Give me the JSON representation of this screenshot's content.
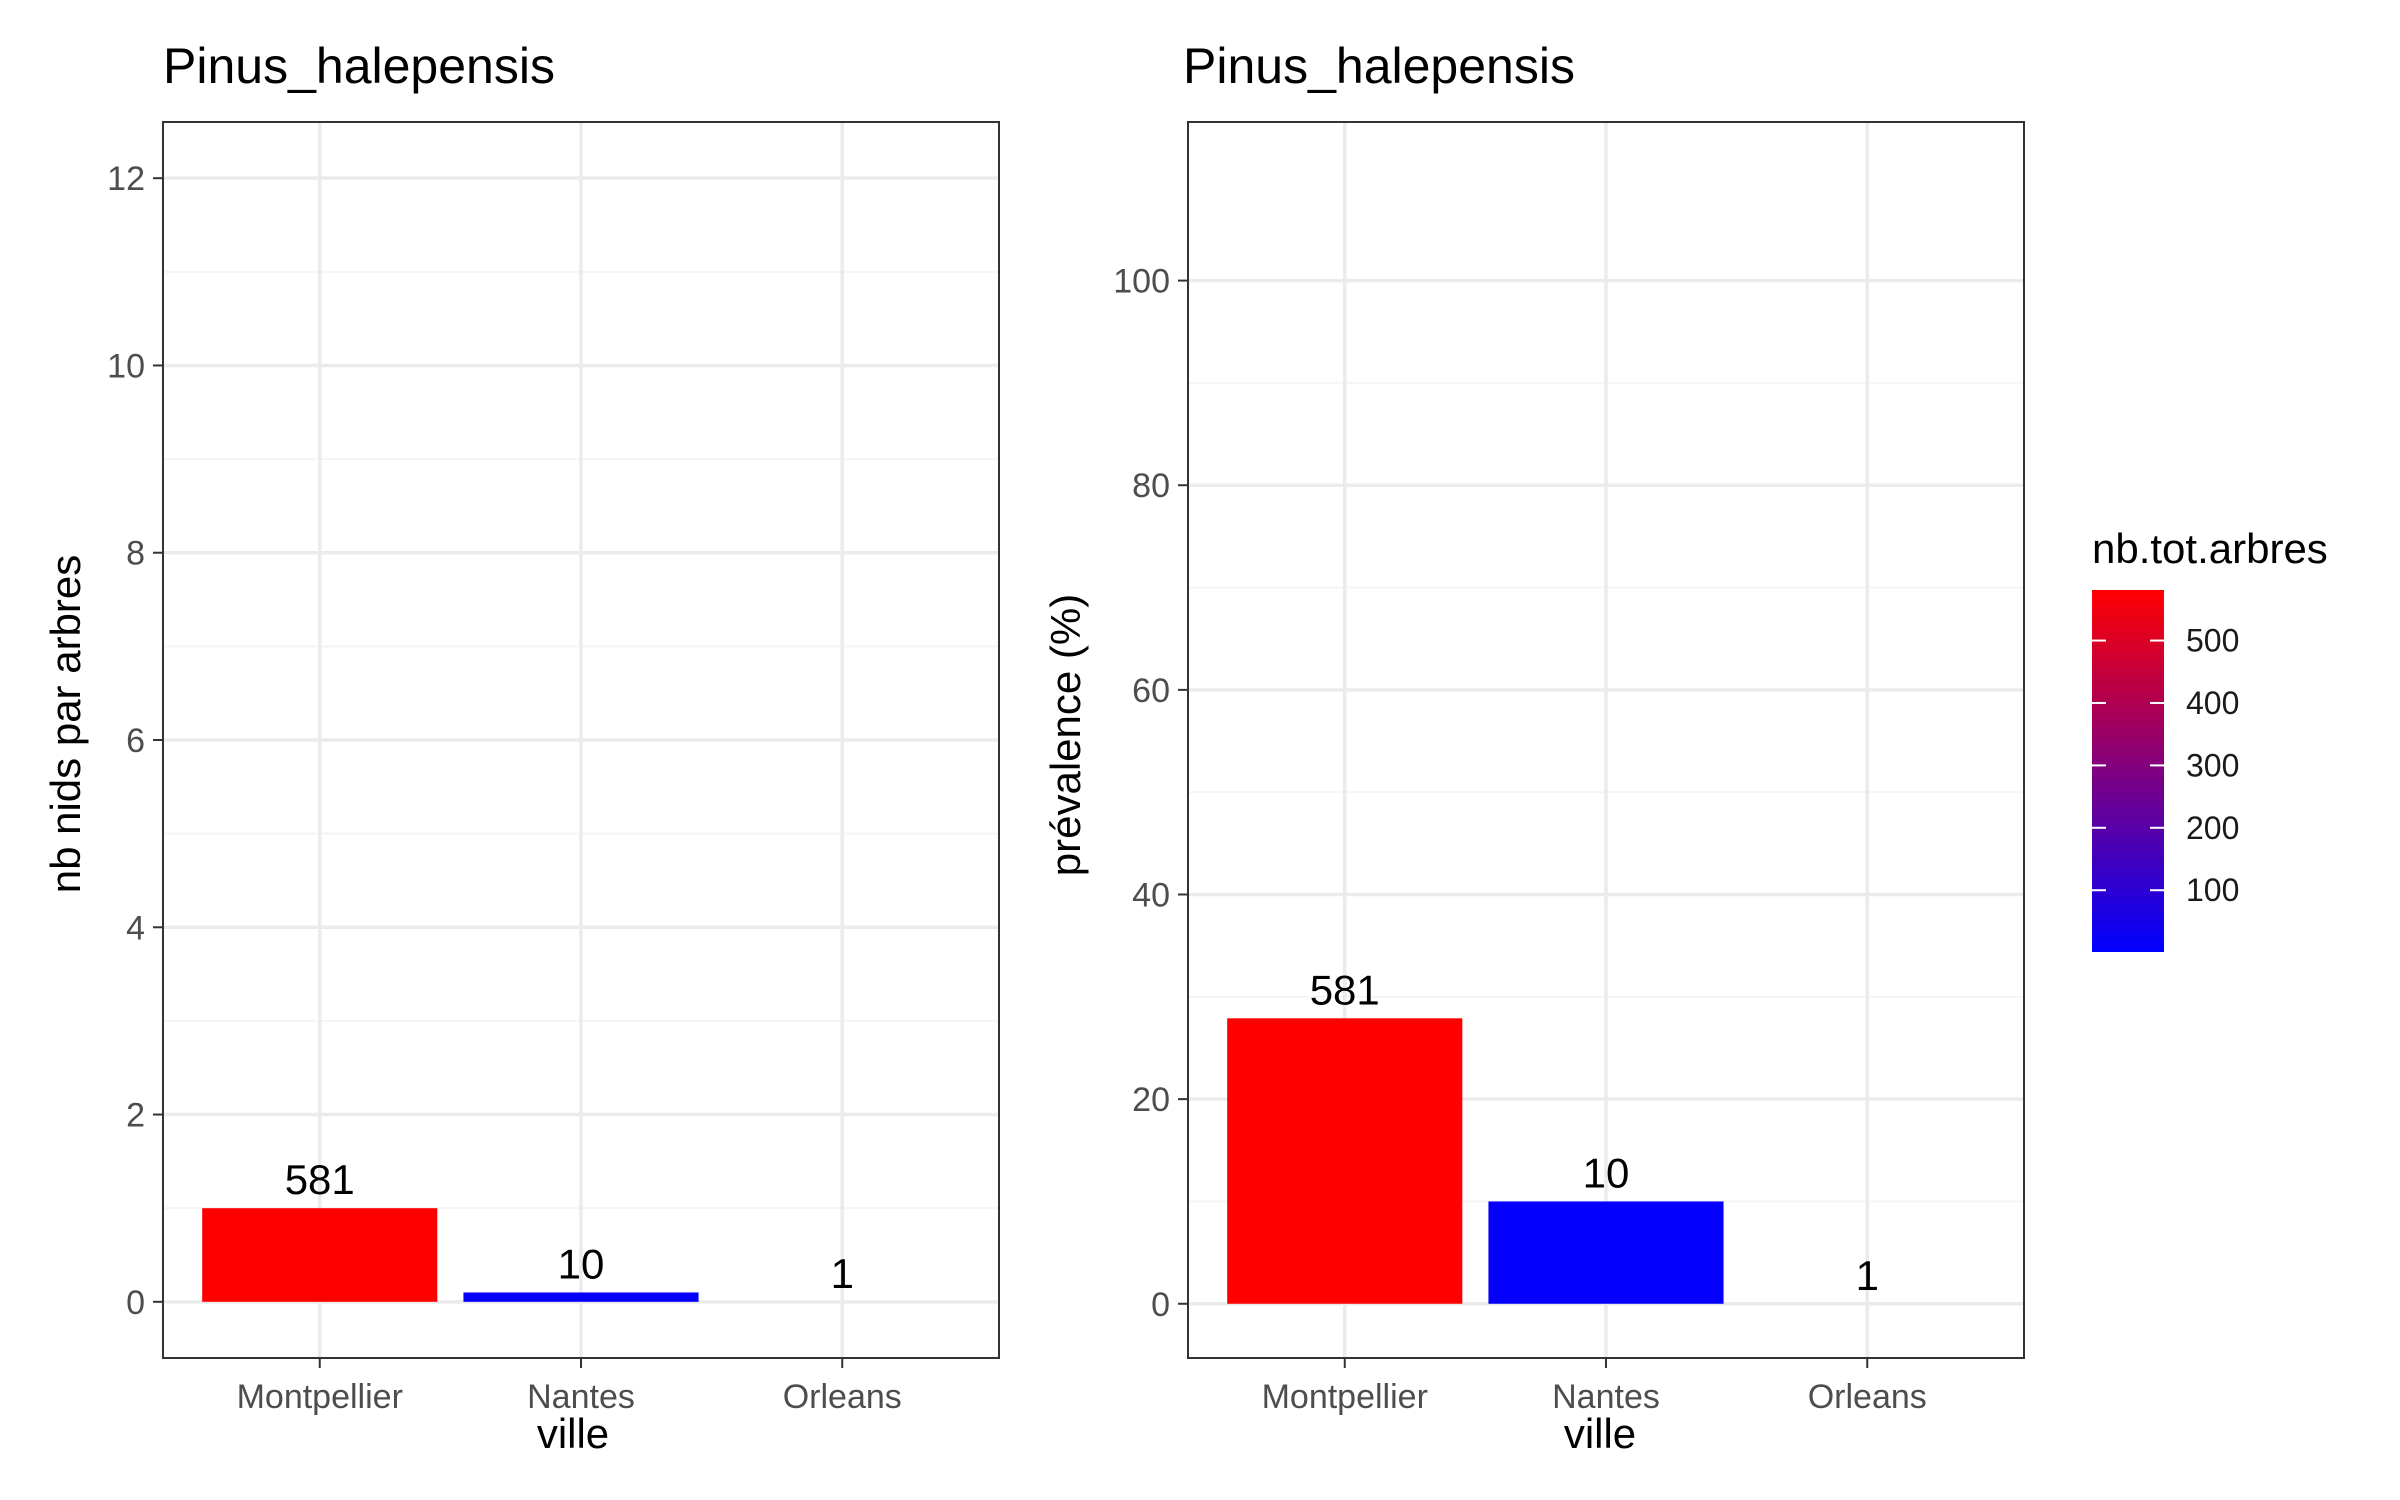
{
  "chart_data": [
    {
      "type": "bar",
      "title": "Pinus_halepensis",
      "xlabel": "ville",
      "ylabel": "nb nids par arbres",
      "categories": [
        "Montpellier",
        "Nantes",
        "Orleans"
      ],
      "values": [
        1.0,
        0.1,
        0.0
      ],
      "bar_labels": [
        "581",
        "10",
        "1"
      ],
      "fill_values": [
        581,
        10,
        1
      ],
      "ylim": [
        -0.6,
        12.6
      ],
      "yticks": [
        0,
        2,
        4,
        6,
        8,
        10,
        12
      ],
      "ytick_labels": [
        "0",
        "2",
        "4",
        "6",
        "8",
        "10",
        "12"
      ],
      "grid": true
    },
    {
      "type": "bar",
      "title": "Pinus_halepensis",
      "xlabel": "ville",
      "ylabel": "prévalence (%)",
      "categories": [
        "Montpellier",
        "Nantes",
        "Orleans"
      ],
      "values": [
        27.9,
        10.0,
        0.0
      ],
      "bar_labels": [
        "581",
        "10",
        "1"
      ],
      "fill_values": [
        581,
        10,
        1
      ],
      "ylim": [
        -5.3,
        115.5
      ],
      "yticks": [
        0,
        20,
        40,
        60,
        80,
        100
      ],
      "ytick_labels": [
        "0",
        "20",
        "40",
        "60",
        "80",
        "100"
      ],
      "grid": true
    }
  ],
  "legend": {
    "title": "nb.tot.arbres",
    "placement": "right",
    "type": "colorbar",
    "low_color": "#0000FF",
    "high_color": "#FF0000",
    "min": 1,
    "max": 581,
    "breaks": [
      100,
      200,
      300,
      400,
      500
    ],
    "break_labels": [
      "100",
      "200",
      "300",
      "400",
      "500"
    ]
  },
  "colors": {
    "panel_border": "#333333",
    "grid_major": "#ebebeb",
    "grid_minor": "#f5f5f5",
    "tick": "#333333"
  }
}
